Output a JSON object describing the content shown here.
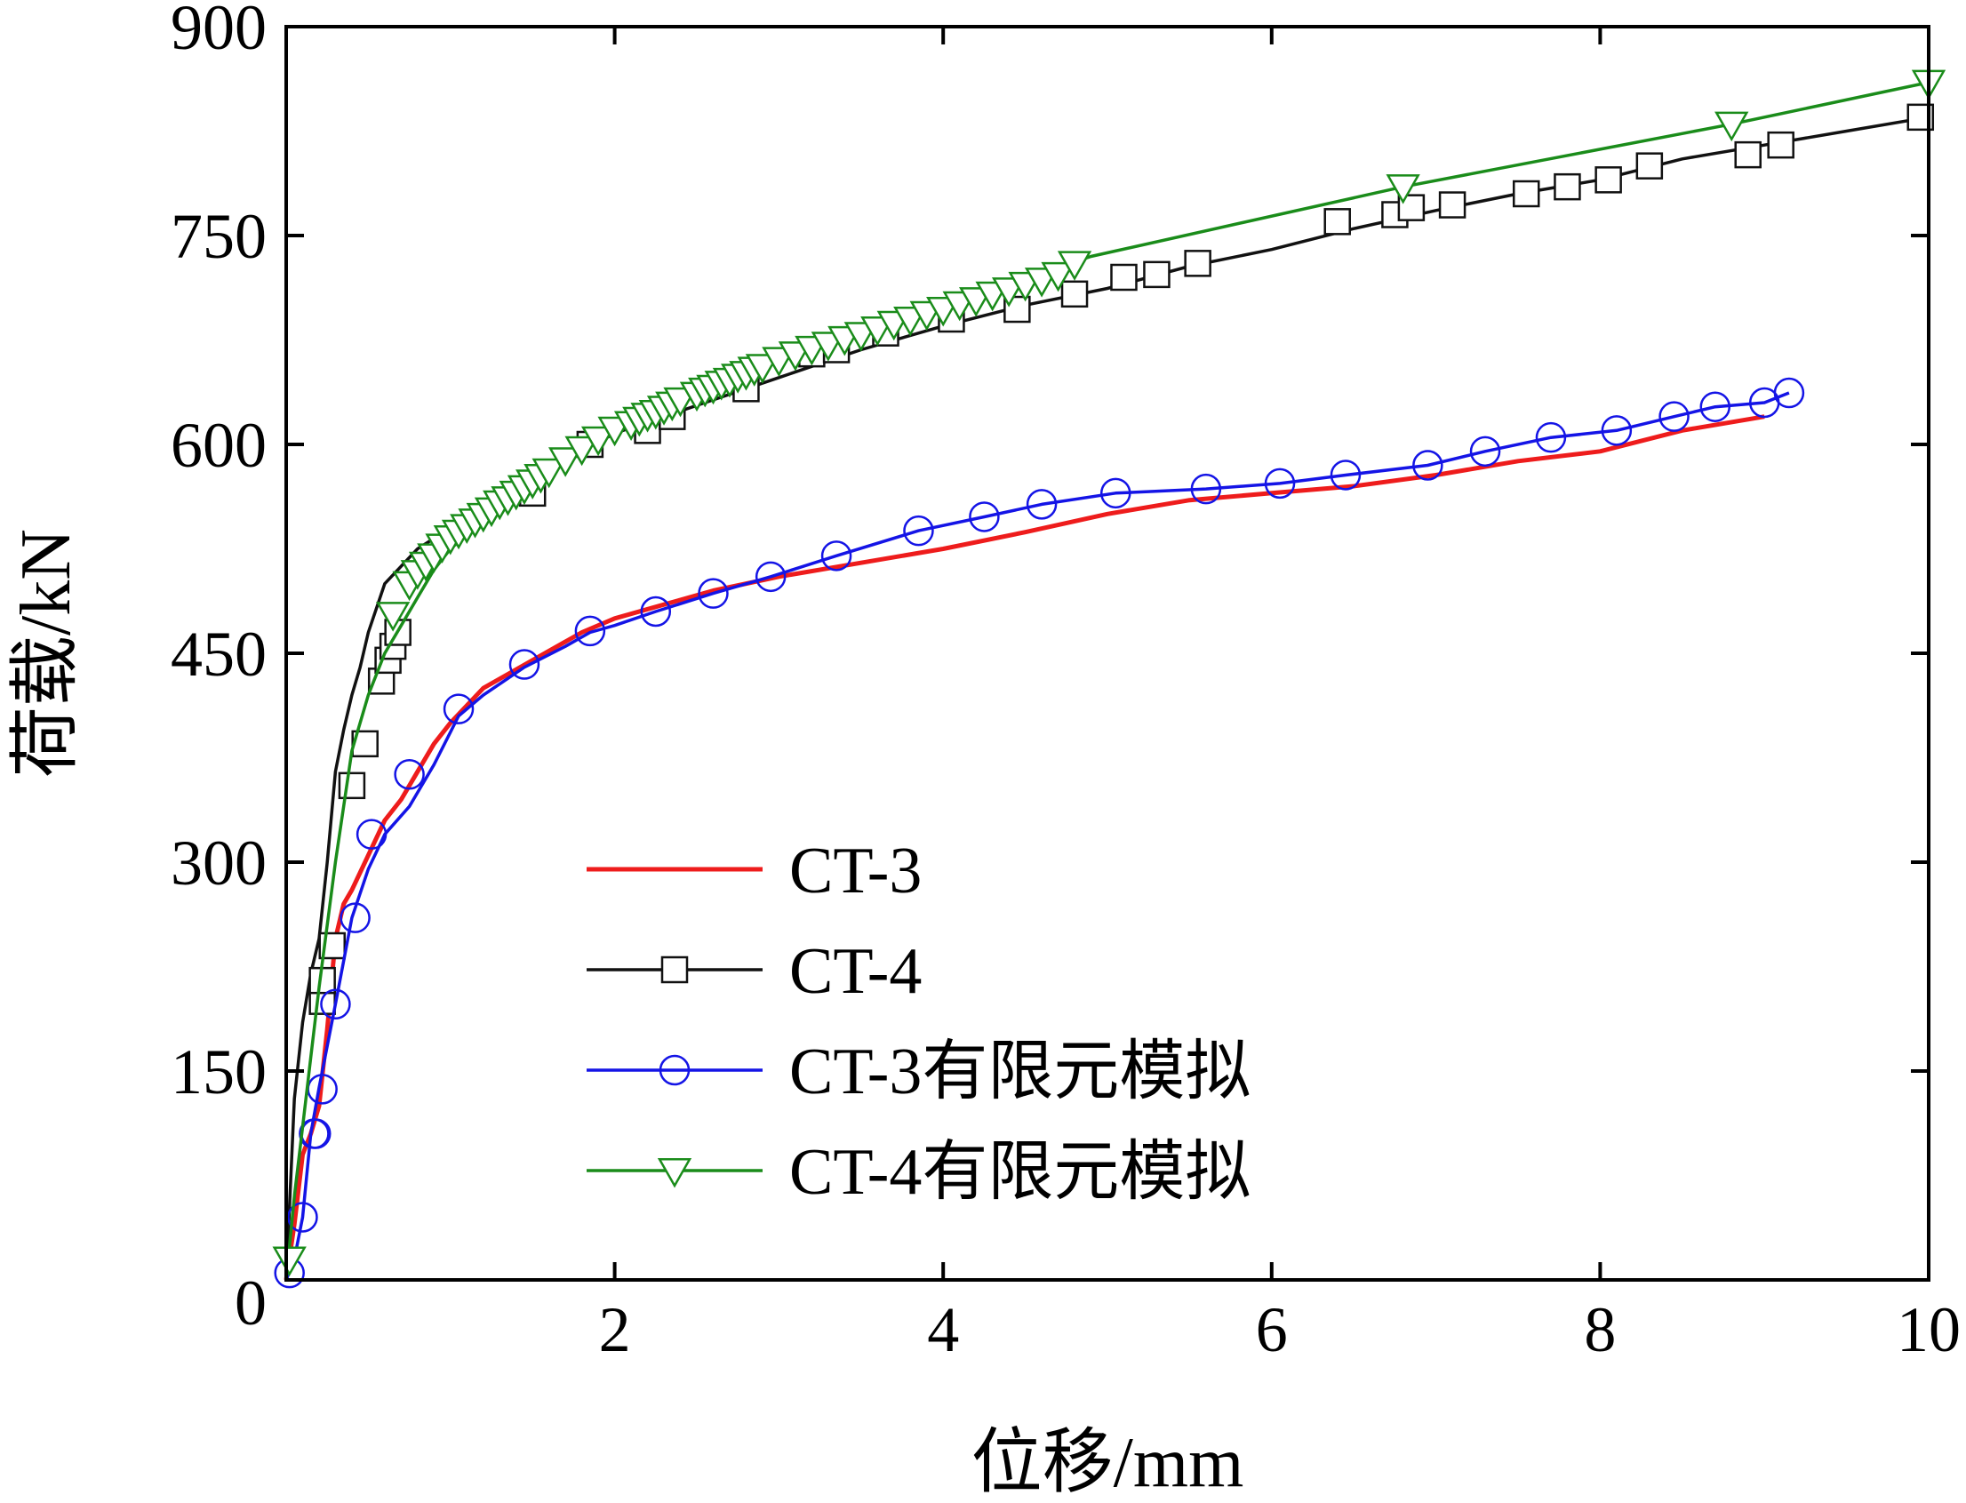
{
  "chart_data": {
    "type": "line",
    "title": "",
    "xlabel": "位移/mm",
    "ylabel": "荷载/kN",
    "xlim": [
      0,
      10
    ],
    "ylim": [
      0,
      900
    ],
    "xticks": [
      0,
      2,
      4,
      6,
      8,
      10
    ],
    "yticks": [
      0,
      150,
      300,
      450,
      600,
      750,
      900
    ],
    "x_tick_labels": [
      "0",
      "2",
      "4",
      "6",
      "8",
      "10"
    ],
    "y_tick_labels": [
      "",
      "150",
      "300",
      "450",
      "600",
      "750",
      "900"
    ],
    "origin_label": "0",
    "legend_position": "bottom-center",
    "series": [
      {
        "name": "CT-3",
        "color": "#ee1c1c",
        "marker": "none",
        "x": [
          0,
          0.05,
          0.1,
          0.15,
          0.2,
          0.25,
          0.3,
          0.35,
          0.4,
          0.5,
          0.6,
          0.7,
          0.8,
          0.9,
          1.0,
          1.2,
          1.5,
          1.8,
          2.0,
          2.3,
          2.6,
          3.0,
          3.5,
          4.0,
          4.5,
          5.0,
          5.5,
          6.0,
          6.5,
          7.0,
          7.5,
          8.0,
          8.5,
          9.0
        ],
        "y": [
          0,
          40,
          90,
          105,
          125,
          180,
          245,
          270,
          280,
          305,
          330,
          345,
          365,
          385,
          400,
          425,
          445,
          465,
          475,
          485,
          495,
          505,
          515,
          525,
          537,
          550,
          560,
          565,
          570,
          578,
          588,
          595,
          610,
          620
        ]
      },
      {
        "name": "CT-4",
        "color": "#111111",
        "marker": "square",
        "x": [
          0,
          0.05,
          0.1,
          0.15,
          0.2,
          0.25,
          0.3,
          0.35,
          0.4,
          0.45,
          0.5,
          0.6,
          0.8,
          1.0,
          1.2,
          1.5,
          1.8,
          2.0,
          2.3,
          2.6,
          3.0,
          3.5,
          4.0,
          4.5,
          5.0,
          5.5,
          6.0,
          6.5,
          7.0,
          7.5,
          8.0,
          8.5,
          9.0,
          9.5,
          10.0
        ],
        "y": [
          0,
          130,
          185,
          220,
          245,
          300,
          365,
          395,
          420,
          440,
          465,
          500,
          525,
          540,
          558,
          575,
          595,
          608,
          620,
          632,
          648,
          668,
          685,
          700,
          712,
          728,
          740,
          755,
          768,
          780,
          790,
          805,
          815,
          825,
          835
        ],
        "marker_x": [
          0.22,
          0.22,
          0.28,
          0.4,
          0.48,
          0.58,
          0.62,
          0.65,
          0.68,
          1.5,
          1.85,
          2.2,
          2.35,
          2.8,
          3.2,
          3.35,
          3.65,
          4.05,
          4.45,
          4.8,
          5.1,
          5.3,
          5.55,
          6.4,
          6.75,
          6.85,
          7.1,
          7.55,
          7.8,
          8.05,
          8.3,
          8.9,
          9.1,
          9.95
        ],
        "marker_y": [
          200,
          215,
          240,
          355,
          385,
          430,
          445,
          455,
          465,
          565,
          600,
          610,
          620,
          640,
          665,
          668,
          680,
          690,
          697,
          708,
          720,
          722,
          730,
          760,
          765,
          770,
          772,
          780,
          785,
          790,
          800,
          808,
          815,
          835
        ]
      },
      {
        "name": "CT-3有限元模拟",
        "color": "#1414e6",
        "marker": "circle",
        "x": [
          0,
          0.05,
          0.1,
          0.15,
          0.2,
          0.3,
          0.4,
          0.5,
          0.6,
          0.75,
          0.9,
          1.05,
          1.2,
          1.45,
          1.7,
          1.85,
          2.0,
          2.25,
          2.6,
          2.95,
          3.35,
          3.85,
          4.25,
          4.6,
          5.05,
          5.6,
          6.05,
          6.45,
          6.95,
          7.3,
          7.7,
          8.1,
          8.45,
          8.7,
          9.0,
          9.15
        ],
        "y": [
          0,
          15,
          45,
          105,
          138,
          198,
          260,
          295,
          320,
          340,
          370,
          405,
          420,
          440,
          455,
          465,
          470,
          480,
          493,
          505,
          520,
          538,
          548,
          557,
          565,
          568,
          572,
          578,
          585,
          595,
          605,
          610,
          620,
          627,
          630,
          637
        ],
        "marker_x": [
          0.02,
          0.1,
          0.17,
          0.18,
          0.22,
          0.3,
          0.42,
          0.52,
          0.75,
          1.05,
          1.45,
          1.85,
          2.25,
          2.6,
          2.95,
          3.35,
          3.85,
          4.25,
          4.6,
          5.05,
          5.6,
          6.05,
          6.45,
          6.95,
          7.3,
          7.7,
          8.1,
          8.45,
          8.7,
          9.0,
          9.15
        ],
        "marker_y": [
          5,
          45,
          105,
          105,
          137,
          198,
          260,
          320,
          363,
          410,
          442,
          466,
          480,
          493,
          505,
          520,
          538,
          548,
          557,
          565,
          568,
          572,
          578,
          585,
          595,
          605,
          610,
          620,
          627,
          630,
          637
        ]
      },
      {
        "name": "CT-4有限元模拟",
        "color": "#1a8c1a",
        "marker": "triangle-down",
        "x": [
          0,
          0.05,
          0.1,
          0.15,
          0.2,
          0.3,
          0.4,
          0.5,
          0.6,
          0.7,
          0.8,
          0.9,
          1.0,
          1.2,
          1.4,
          1.6,
          1.8,
          2.0,
          2.2,
          2.4,
          2.6,
          2.8,
          3.0,
          3.3,
          3.6,
          3.9,
          4.2,
          4.5,
          4.7,
          4.9,
          6.8,
          8.8,
          10.0
        ],
        "y": [
          0,
          60,
          110,
          160,
          210,
          300,
          380,
          420,
          450,
          470,
          490,
          510,
          525,
          545,
          565,
          585,
          600,
          612,
          622,
          632,
          640,
          650,
          660,
          672,
          685,
          697,
          707,
          717,
          727,
          735,
          785,
          830,
          860
        ],
        "marker_x": [
          0.02,
          0.65,
          0.75,
          0.8,
          0.85,
          0.9,
          0.95,
          1.0,
          1.05,
          1.1,
          1.15,
          1.2,
          1.25,
          1.3,
          1.35,
          1.4,
          1.45,
          1.5,
          1.55,
          1.6,
          1.7,
          1.8,
          1.9,
          2.0,
          2.1,
          2.15,
          2.2,
          2.25,
          2.3,
          2.35,
          2.4,
          2.5,
          2.55,
          2.6,
          2.65,
          2.7,
          2.75,
          2.8,
          2.85,
          2.9,
          3.0,
          3.1,
          3.2,
          3.3,
          3.4,
          3.5,
          3.6,
          3.7,
          3.8,
          3.9,
          4.0,
          4.1,
          4.2,
          4.3,
          4.4,
          4.5,
          4.6,
          4.7,
          4.8,
          6.8,
          8.8,
          10.0
        ],
        "marker_y": [
          15,
          478,
          500,
          508,
          514,
          520,
          527,
          533,
          537,
          541,
          545,
          549,
          553,
          558,
          561,
          565,
          569,
          573,
          577,
          581,
          589,
          597,
          604,
          611,
          615,
          618,
          621,
          623,
          626,
          629,
          632,
          636,
          639,
          641,
          644,
          646,
          649,
          651,
          654,
          656,
          661,
          665,
          669,
          672,
          676,
          679,
          683,
          687,
          690,
          694,
          697,
          701,
          704,
          708,
          711,
          715,
          718,
          722,
          730,
          785,
          830,
          860
        ]
      }
    ]
  }
}
